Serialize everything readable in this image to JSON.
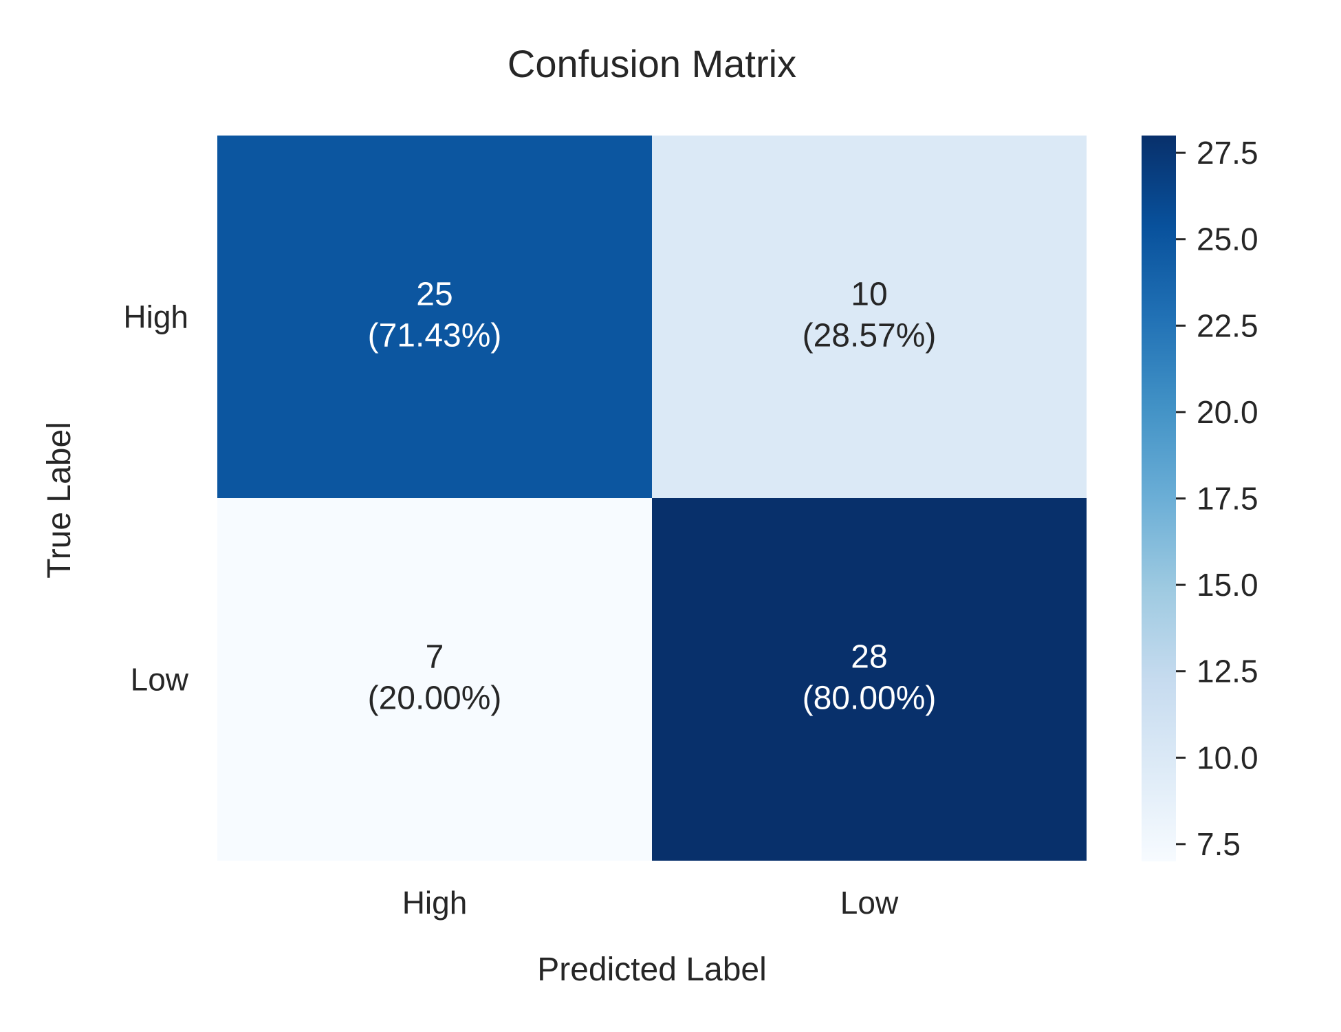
{
  "chart_data": {
    "type": "heatmap",
    "title": "Confusion Matrix",
    "xlabel": "Predicted Label",
    "ylabel": "True Label",
    "x_categories": [
      "High",
      "Low"
    ],
    "y_categories": [
      "High",
      "Low"
    ],
    "values": [
      [
        25,
        10
      ],
      [
        7,
        28
      ]
    ],
    "annotations": [
      [
        "(71.43%)",
        "(28.57%)"
      ],
      [
        "(20.00%)",
        "(80.00%)"
      ]
    ],
    "colormap": "Blues",
    "colorbar": {
      "range": [
        7,
        28
      ],
      "ticks": [
        7.5,
        10.0,
        12.5,
        15.0,
        17.5,
        20.0,
        22.5,
        25.0,
        27.5
      ],
      "tick_labels": [
        "7.5",
        "10.0",
        "12.5",
        "15.0",
        "17.5",
        "20.0",
        "22.5",
        "25.0",
        "27.5"
      ]
    },
    "grid": false
  }
}
